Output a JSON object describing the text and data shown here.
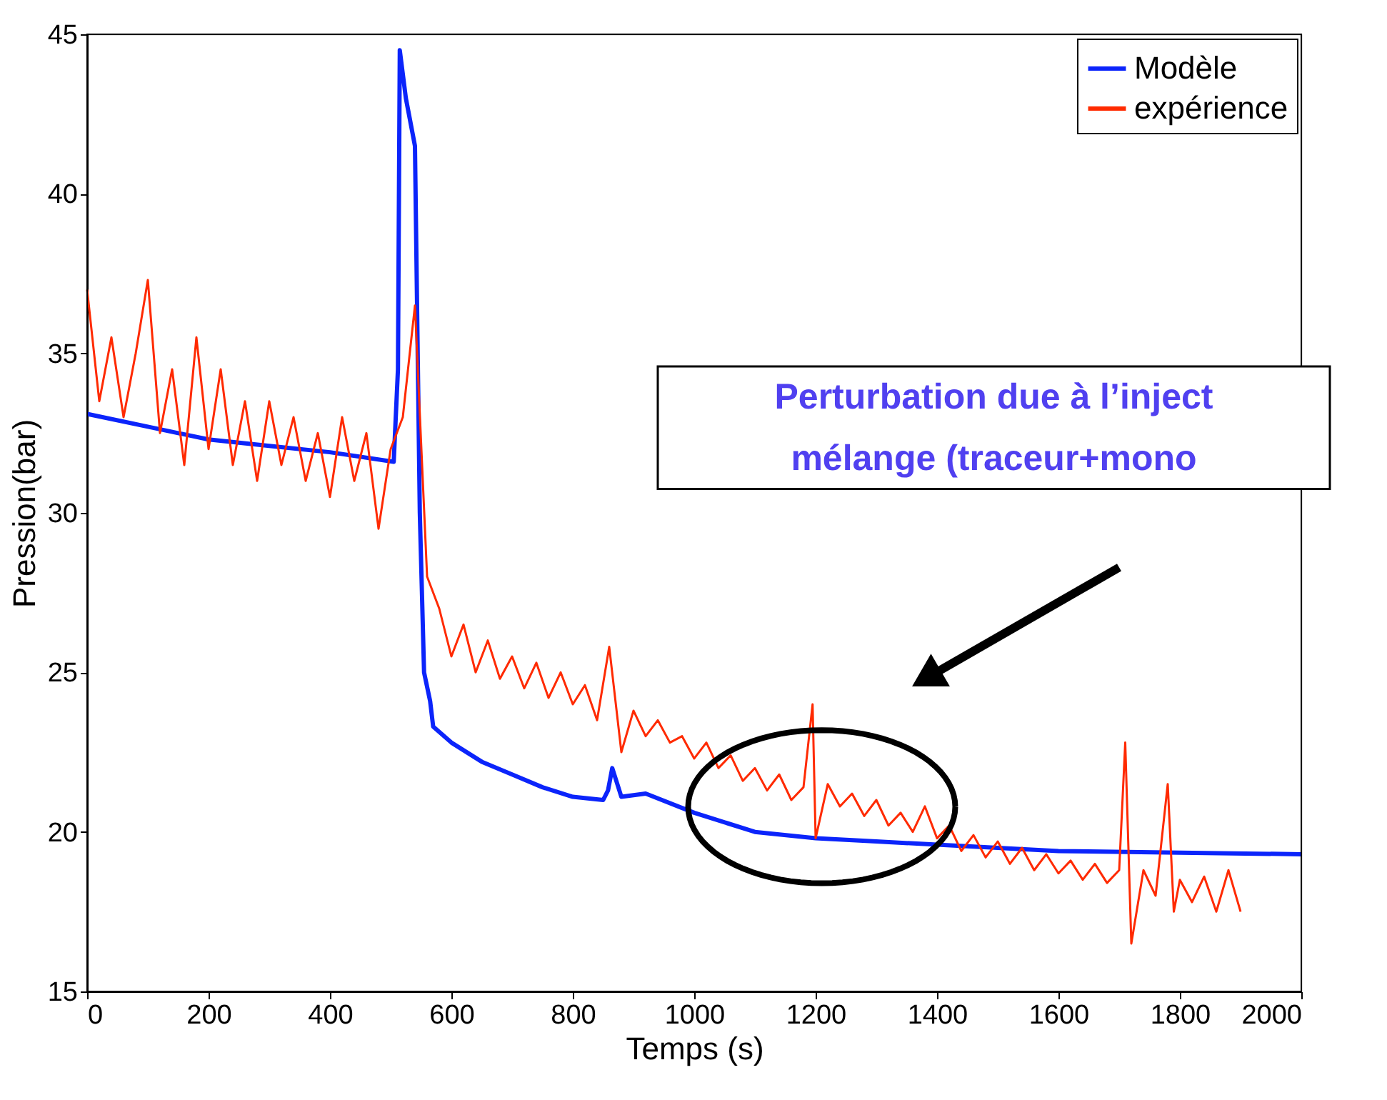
{
  "chart_data": {
    "type": "line",
    "xlabel": "Temps (s)",
    "ylabel": "Pression(bar)",
    "xlim": [
      0,
      2000
    ],
    "xticks": [
      0,
      200,
      400,
      600,
      800,
      1000,
      1200,
      1400,
      1600,
      1800,
      2000
    ],
    "ylim": [
      15,
      45
    ],
    "yticks": [
      15,
      20,
      25,
      30,
      35,
      40,
      45
    ],
    "grid": false,
    "legend": "top right",
    "line_style": "solid",
    "marker": "none",
    "annotations": [
      "Perturbation due à l’inject",
      "mélange (traceur+mono"
    ],
    "series": [
      {
        "name": "Modèle",
        "color": "#0b24fb",
        "x": [
          0,
          100,
          200,
          300,
          400,
          505,
          512,
          515,
          525,
          540,
          548,
          555,
          565,
          570,
          600,
          650,
          700,
          750,
          800,
          850,
          858,
          865,
          875,
          880,
          920,
          1000,
          1100,
          1200,
          1300,
          1400,
          1600,
          1800,
          2000
        ],
        "values": [
          33.1,
          32.7,
          32.3,
          32.1,
          31.9,
          31.6,
          34.5,
          44.5,
          43,
          41.5,
          30,
          25,
          24.1,
          23.3,
          22.8,
          22.2,
          21.8,
          21.4,
          21.1,
          21.0,
          21.3,
          22.0,
          21.4,
          21.1,
          21.2,
          20.6,
          20.0,
          19.8,
          19.7,
          19.6,
          19.4,
          19.35,
          19.3
        ]
      },
      {
        "name": "expérience",
        "color": "#ff2a00",
        "x": [
          0,
          20,
          40,
          60,
          80,
          100,
          120,
          140,
          160,
          180,
          200,
          220,
          240,
          260,
          280,
          300,
          320,
          340,
          360,
          380,
          400,
          420,
          440,
          460,
          480,
          500,
          520,
          540,
          560,
          580,
          600,
          620,
          640,
          660,
          680,
          700,
          720,
          740,
          760,
          780,
          800,
          820,
          840,
          860,
          880,
          900,
          920,
          940,
          960,
          980,
          1000,
          1020,
          1040,
          1060,
          1080,
          1100,
          1120,
          1140,
          1160,
          1180,
          1195,
          1200,
          1220,
          1240,
          1260,
          1280,
          1300,
          1320,
          1340,
          1360,
          1380,
          1400,
          1420,
          1440,
          1460,
          1480,
          1500,
          1520,
          1540,
          1560,
          1580,
          1600,
          1620,
          1640,
          1660,
          1680,
          1700,
          1710,
          1720,
          1740,
          1760,
          1780,
          1790,
          1800,
          1820,
          1840,
          1860,
          1880,
          1900
        ],
        "values": [
          37,
          33.5,
          35.5,
          33,
          35,
          37.3,
          32.5,
          34.5,
          31.5,
          35.5,
          32,
          34.5,
          31.5,
          33.5,
          31,
          33.5,
          31.5,
          33,
          31,
          32.5,
          30.5,
          33,
          31,
          32.5,
          29.5,
          32,
          33,
          36.5,
          28,
          27,
          25.5,
          26.5,
          25,
          26,
          24.8,
          25.5,
          24.5,
          25.3,
          24.2,
          25,
          24,
          24.6,
          23.5,
          25.8,
          22.5,
          23.8,
          23,
          23.5,
          22.8,
          23,
          22.3,
          22.8,
          22,
          22.4,
          21.6,
          22,
          21.3,
          21.8,
          21,
          21.4,
          24,
          19.8,
          21.5,
          20.8,
          21.2,
          20.5,
          21,
          20.2,
          20.6,
          20,
          20.8,
          19.8,
          20.2,
          19.4,
          19.9,
          19.2,
          19.7,
          19,
          19.5,
          18.8,
          19.3,
          18.7,
          19.1,
          18.5,
          19,
          18.4,
          18.8,
          22.8,
          16.5,
          18.8,
          18,
          21.5,
          17.5,
          18.5,
          17.8,
          18.6,
          17.5,
          18.8,
          17.5
        ]
      }
    ]
  }
}
